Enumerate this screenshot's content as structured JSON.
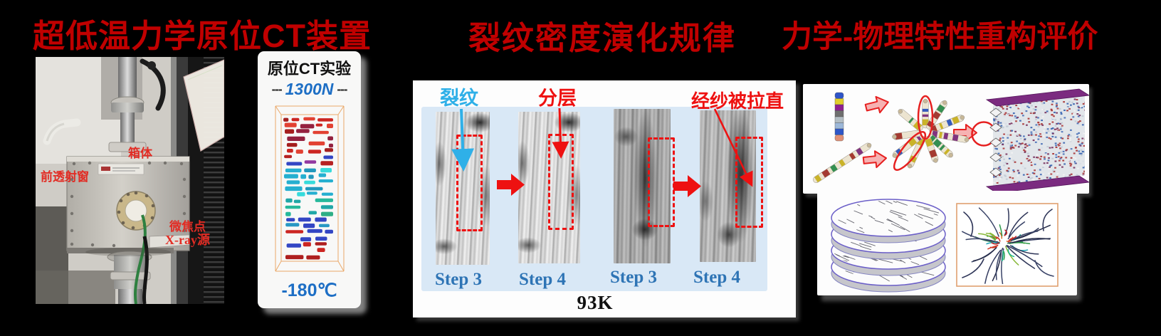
{
  "device": {
    "title": "超低温力学原位CT装置",
    "photo": {
      "label_box": "箱体",
      "label_window": "前透射窗",
      "label_focus": "微焦点",
      "label_source": "X-ray源"
    },
    "ct_panel": {
      "title": "原位CT实验",
      "dash_left": "---",
      "load": "1300N",
      "dash_right": "---",
      "temperature": "-180℃"
    }
  },
  "crack_section": {
    "title": "裂纹密度演化规律",
    "label_crack": "裂纹",
    "label_delamination": "分层",
    "label_warp": "经纱被拉直",
    "steps": [
      "Step 3",
      "Step 4",
      "Step 3",
      "Step 4"
    ],
    "temperature": "93K"
  },
  "evaluation": {
    "title": "力学-物理特性重构评价"
  },
  "colors": {
    "title_red": "#c00000",
    "annotation_red": "#ee1111",
    "crack_cyan": "#2fb0e8",
    "step_blue": "#2e74b5",
    "value_blue": "#1e6fc5",
    "panel_blue": "#d9e8f6",
    "lattice_purple": "#7b2b80",
    "wireframe_orange": "#e8a860"
  }
}
